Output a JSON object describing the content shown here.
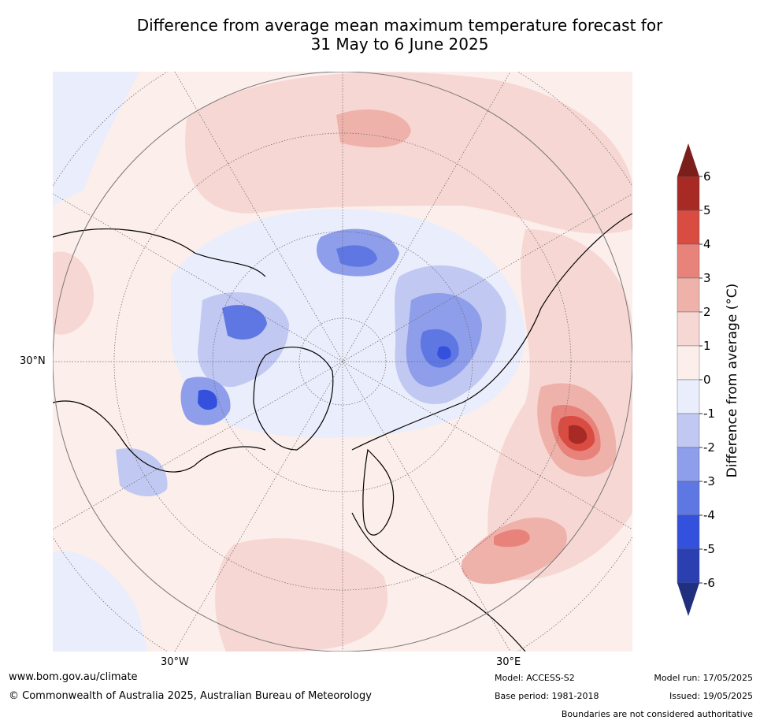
{
  "title_line1": "Difference from average mean maximum temperature forecast for",
  "title_line2": "31 May to 6 June 2025",
  "map": {
    "projection": "north-polar-stereographic",
    "lat_label": "30°N",
    "lon_labels": {
      "west": "30°W",
      "east": "30°E"
    }
  },
  "colorbar": {
    "label": "Difference from average (°C)",
    "ticks": [
      "6",
      "5",
      "4",
      "3",
      "2",
      "1",
      "0",
      "-1",
      "-2",
      "-3",
      "-4",
      "-5",
      "-6"
    ],
    "colors_top_to_bottom": [
      "#a82a25",
      "#d94c42",
      "#e8837b",
      "#efb2ab",
      "#f6d7d3",
      "#fbeeeb",
      "#eaedfb",
      "#c1c8f2",
      "#8e9eea",
      "#5e77e2",
      "#3351dd",
      "#2b3fb0"
    ],
    "extend_high_color": "#7a1f1a",
    "extend_low_color": "#20307f"
  },
  "footer": {
    "website": "www.bom.gov.au/climate",
    "copyright": "© Commonwealth of Australia 2025, Australian Bureau of Meteorology",
    "model": "Model: ACCESS-S2",
    "base_period": "Base period: 1981-2018",
    "model_run": "Model run: 17/05/2025",
    "issued": "Issued: 19/05/2025",
    "disclaimer": "Boundaries are not considered authoritative"
  }
}
